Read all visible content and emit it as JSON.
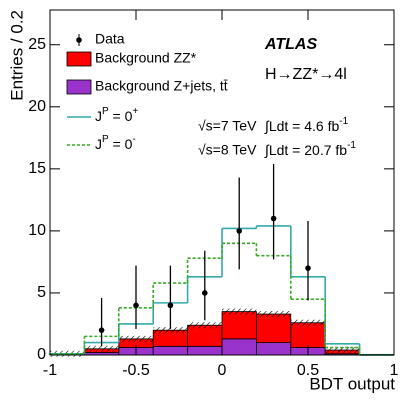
{
  "chart_data": {
    "type": "histogram",
    "x_label": "BDT output",
    "y_label": "Entries / 0.2",
    "bins": [
      -1,
      -0.8,
      -0.6,
      -0.4,
      -0.2,
      0,
      0.2,
      0.4,
      0.6,
      0.8,
      1
    ],
    "xlim": [
      -1,
      1
    ],
    "ylim": [
      0,
      27.8
    ],
    "xticks": [
      -1,
      -0.5,
      0,
      0.5,
      1
    ],
    "yticks": [
      0,
      5,
      10,
      15,
      20,
      25
    ],
    "data": {
      "name": "Data",
      "color": "#000000",
      "values": [
        null,
        2,
        4,
        4,
        5,
        10,
        11,
        7,
        null,
        null
      ],
      "error_low": [
        null,
        1.3,
        1.9,
        1.9,
        2.2,
        3.1,
        3.3,
        2.6,
        null,
        null
      ],
      "error_high": [
        null,
        2.6,
        3.2,
        3.2,
        3.4,
        4.3,
        4.4,
        3.8,
        null,
        null
      ]
    },
    "stacked": [
      {
        "name": "Background Z+jets, tt̄",
        "color": "#9933cc",
        "values": [
          0.05,
          0.2,
          0.6,
          0.7,
          0.7,
          1.3,
          1.0,
          0.6,
          0.1,
          0
        ]
      },
      {
        "name": "Background ZZ*",
        "color": "#ff0000",
        "values": [
          0.05,
          0.3,
          0.7,
          1.3,
          1.7,
          2.2,
          2.3,
          2.0,
          0.3,
          0.05
        ]
      }
    ],
    "series": [
      {
        "name": [
          "J",
          "P",
          " = 0",
          "+"
        ],
        "color": "#33aaaa",
        "dash": false,
        "values": [
          0.1,
          1.0,
          2.5,
          4.2,
          6.3,
          10.2,
          10.4,
          6.3,
          0.9,
          0
        ]
      },
      {
        "name": [
          "J",
          "P",
          " = 0",
          "-"
        ],
        "color": "#33aa22",
        "dash": true,
        "values": [
          0.1,
          1.5,
          3.8,
          5.8,
          7.8,
          9.0,
          8.0,
          4.5,
          0.6,
          0
        ]
      }
    ],
    "annotations": {
      "experiment": "ATLAS",
      "process": "H→ZZ*→4l",
      "energies": [
        {
          "sqrt_s": "√s=7 TeV",
          "lumi": "∫Ldt = 4.6 fb",
          "lumi_exp": "-1"
        },
        {
          "sqrt_s": "√s=8 TeV",
          "lumi": "∫Ldt = 20.7 fb",
          "lumi_exp": "-1"
        }
      ]
    }
  }
}
